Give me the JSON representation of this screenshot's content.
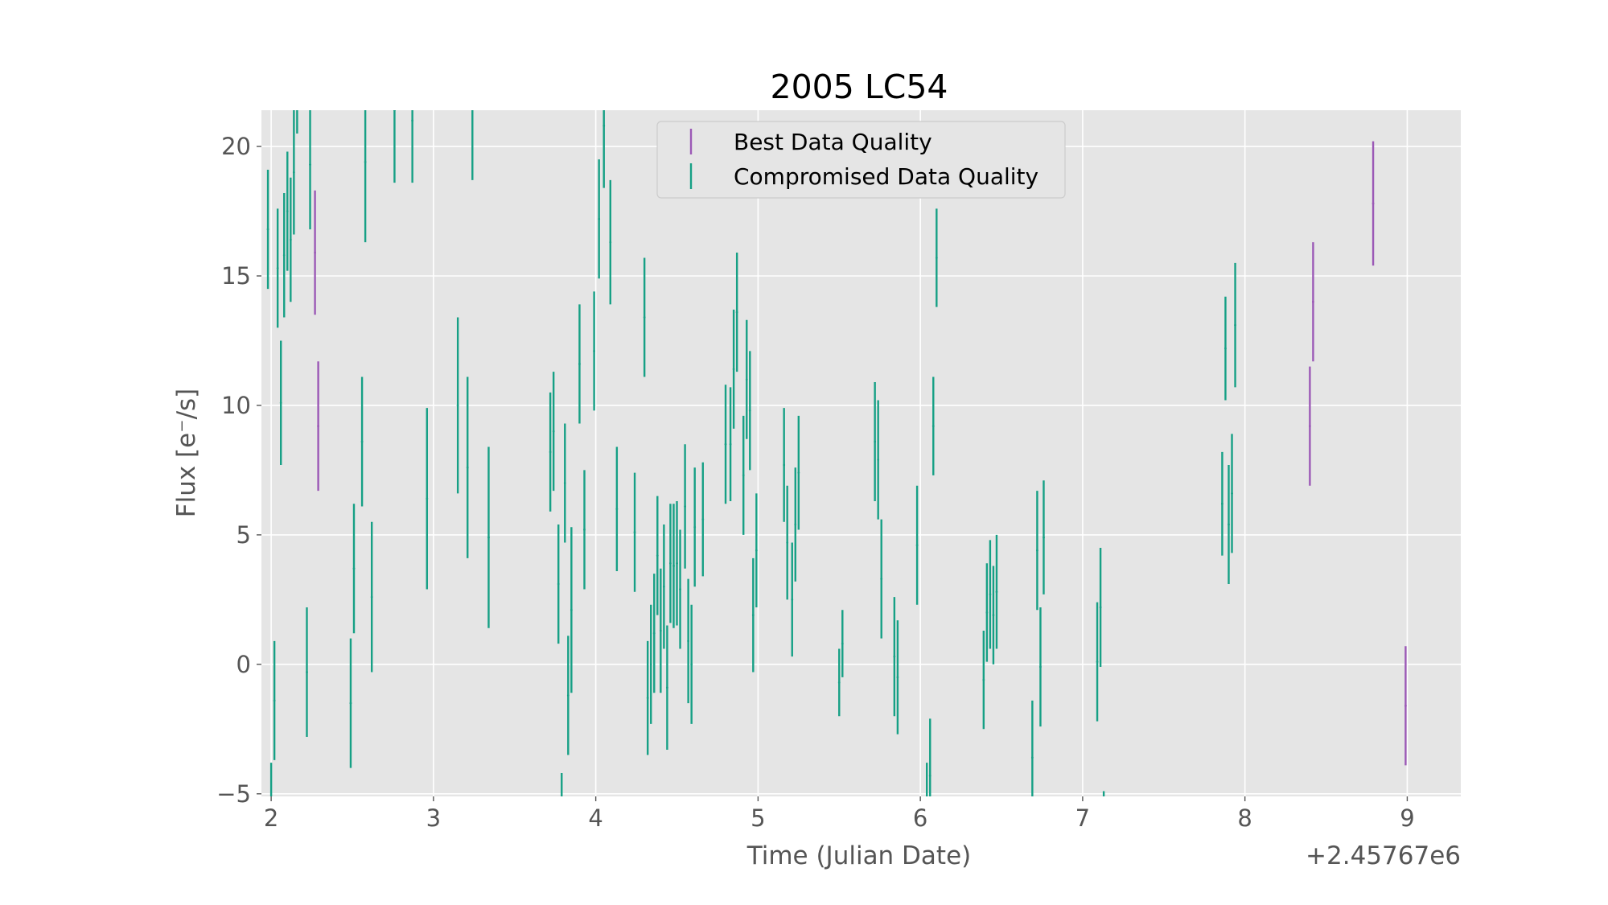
{
  "chart_data": {
    "type": "scatter",
    "title": "2005 LC54",
    "xlabel": "Time (Julian Date)",
    "ylabel": "Flux [e$^-$/s]",
    "ylabel_display": "Flux [e⁻/s]",
    "x_offset_label": "+2.45767e6",
    "x_offset": 2457670,
    "xlim": [
      2457671.94,
      2457679.33
    ],
    "ylim": [
      -5.1,
      21.4
    ],
    "x_tick_values": [
      2457672,
      2457673,
      2457674,
      2457675,
      2457676,
      2457677,
      2457678,
      2457679
    ],
    "x_tick_labels": [
      "2",
      "3",
      "4",
      "5",
      "6",
      "7",
      "8",
      "9"
    ],
    "y_tick_values": [
      -5,
      0,
      5,
      10,
      15,
      20
    ],
    "y_tick_labels": [
      "−5",
      "0",
      "5",
      "10",
      "15",
      "20"
    ],
    "grid": true,
    "legend_position": "top-center",
    "colors": {
      "plot_background": "#e5e5e5",
      "grid": "#ffffff",
      "best": "#9b59b6",
      "compromised": "#16a085"
    },
    "series": [
      {
        "name": "Best Data Quality",
        "color": "#9b59b6",
        "points": [
          {
            "x": 2457672.27,
            "y": 15.9,
            "err": 2.4
          },
          {
            "x": 2457672.29,
            "y": 9.2,
            "err": 2.5
          },
          {
            "x": 2457678.4,
            "y": 9.2,
            "err": 2.3
          },
          {
            "x": 2457678.42,
            "y": 14.0,
            "err": 2.3
          },
          {
            "x": 2457678.79,
            "y": 17.8,
            "err": 2.4
          },
          {
            "x": 2457678.99,
            "y": -1.6,
            "err": 2.3
          }
        ]
      },
      {
        "name": "Compromised Data Quality",
        "color": "#16a085",
        "points": [
          {
            "x": 2457671.98,
            "y": 16.8,
            "err": 2.3
          },
          {
            "x": 2457672.0,
            "y": -6.1,
            "err": 2.3
          },
          {
            "x": 2457672.02,
            "y": -1.4,
            "err": 2.3
          },
          {
            "x": 2457672.04,
            "y": 15.3,
            "err": 2.3
          },
          {
            "x": 2457672.06,
            "y": 10.1,
            "err": 2.4
          },
          {
            "x": 2457672.08,
            "y": 15.8,
            "err": 2.4
          },
          {
            "x": 2457672.1,
            "y": 17.5,
            "err": 2.3
          },
          {
            "x": 2457672.12,
            "y": 16.4,
            "err": 2.4
          },
          {
            "x": 2457672.14,
            "y": 19.0,
            "err": 2.4
          },
          {
            "x": 2457672.16,
            "y": 22.5,
            "err": 2.0
          },
          {
            "x": 2457672.22,
            "y": -0.3,
            "err": 2.5
          },
          {
            "x": 2457672.24,
            "y": 19.3,
            "err": 2.5
          },
          {
            "x": 2457672.49,
            "y": -1.5,
            "err": 2.5
          },
          {
            "x": 2457672.51,
            "y": 3.7,
            "err": 2.5
          },
          {
            "x": 2457672.56,
            "y": 8.6,
            "err": 2.5
          },
          {
            "x": 2457672.58,
            "y": 19.4,
            "err": 3.1
          },
          {
            "x": 2457672.62,
            "y": 2.6,
            "err": 2.9
          },
          {
            "x": 2457672.76,
            "y": 21.4,
            "err": 2.8
          },
          {
            "x": 2457672.87,
            "y": 21.0,
            "err": 2.4
          },
          {
            "x": 2457672.96,
            "y": 6.4,
            "err": 3.5
          },
          {
            "x": 2457673.15,
            "y": 10.0,
            "err": 3.4
          },
          {
            "x": 2457673.21,
            "y": 7.6,
            "err": 3.5
          },
          {
            "x": 2457673.24,
            "y": 21.5,
            "err": 2.8
          },
          {
            "x": 2457673.34,
            "y": 4.9,
            "err": 3.5
          },
          {
            "x": 2457673.72,
            "y": 8.2,
            "err": 2.3
          },
          {
            "x": 2457673.74,
            "y": 9.0,
            "err": 2.3
          },
          {
            "x": 2457673.77,
            "y": 3.1,
            "err": 2.3
          },
          {
            "x": 2457673.79,
            "y": -6.5,
            "err": 2.3
          },
          {
            "x": 2457673.81,
            "y": 7.0,
            "err": 2.3
          },
          {
            "x": 2457673.83,
            "y": -1.2,
            "err": 2.3
          },
          {
            "x": 2457673.85,
            "y": 2.1,
            "err": 3.2
          },
          {
            "x": 2457673.9,
            "y": 11.6,
            "err": 2.3
          },
          {
            "x": 2457673.93,
            "y": 5.2,
            "err": 2.3
          },
          {
            "x": 2457673.99,
            "y": 12.1,
            "err": 2.3
          },
          {
            "x": 2457674.02,
            "y": 17.2,
            "err": 2.3
          },
          {
            "x": 2457674.05,
            "y": 20.8,
            "err": 2.4
          },
          {
            "x": 2457674.09,
            "y": 16.3,
            "err": 2.4
          },
          {
            "x": 2457674.13,
            "y": 6.0,
            "err": 2.4
          },
          {
            "x": 2457674.24,
            "y": 5.1,
            "err": 2.3
          },
          {
            "x": 2457674.3,
            "y": 13.4,
            "err": 2.3
          },
          {
            "x": 2457674.32,
            "y": -1.3,
            "err": 2.2
          },
          {
            "x": 2457674.34,
            "y": 0.0,
            "err": 2.3
          },
          {
            "x": 2457674.36,
            "y": 1.2,
            "err": 2.3
          },
          {
            "x": 2457674.38,
            "y": 4.2,
            "err": 2.3
          },
          {
            "x": 2457674.4,
            "y": 1.3,
            "err": 2.4
          },
          {
            "x": 2457674.42,
            "y": 3.0,
            "err": 2.4
          },
          {
            "x": 2457674.44,
            "y": -0.9,
            "err": 2.4
          },
          {
            "x": 2457674.46,
            "y": 3.9,
            "err": 2.3
          },
          {
            "x": 2457674.48,
            "y": 3.8,
            "err": 2.4
          },
          {
            "x": 2457674.5,
            "y": 3.9,
            "err": 2.4
          },
          {
            "x": 2457674.52,
            "y": 2.9,
            "err": 2.3
          },
          {
            "x": 2457674.55,
            "y": 6.1,
            "err": 2.4
          },
          {
            "x": 2457674.57,
            "y": 0.9,
            "err": 2.4
          },
          {
            "x": 2457674.59,
            "y": 0.0,
            "err": 2.3
          },
          {
            "x": 2457674.61,
            "y": 5.3,
            "err": 2.3
          },
          {
            "x": 2457674.66,
            "y": 5.6,
            "err": 2.2
          },
          {
            "x": 2457674.8,
            "y": 8.5,
            "err": 2.3
          },
          {
            "x": 2457674.83,
            "y": 8.5,
            "err": 2.2
          },
          {
            "x": 2457674.85,
            "y": 11.4,
            "err": 2.3
          },
          {
            "x": 2457674.87,
            "y": 13.6,
            "err": 2.3
          },
          {
            "x": 2457674.91,
            "y": 7.3,
            "err": 2.3
          },
          {
            "x": 2457674.93,
            "y": 11.0,
            "err": 2.3
          },
          {
            "x": 2457674.95,
            "y": 9.8,
            "err": 2.3
          },
          {
            "x": 2457674.97,
            "y": 1.9,
            "err": 2.2
          },
          {
            "x": 2457674.99,
            "y": 4.4,
            "err": 2.2
          },
          {
            "x": 2457675.16,
            "y": 7.7,
            "err": 2.2
          },
          {
            "x": 2457675.18,
            "y": 4.7,
            "err": 2.2
          },
          {
            "x": 2457675.21,
            "y": 2.5,
            "err": 2.2
          },
          {
            "x": 2457675.23,
            "y": 5.4,
            "err": 2.2
          },
          {
            "x": 2457675.25,
            "y": 7.4,
            "err": 2.2
          },
          {
            "x": 2457675.5,
            "y": -0.7,
            "err": 1.3
          },
          {
            "x": 2457675.52,
            "y": 0.8,
            "err": 1.3
          },
          {
            "x": 2457675.72,
            "y": 8.6,
            "err": 2.3
          },
          {
            "x": 2457675.74,
            "y": 7.9,
            "err": 2.3
          },
          {
            "x": 2457675.76,
            "y": 3.3,
            "err": 2.3
          },
          {
            "x": 2457675.84,
            "y": 0.3,
            "err": 2.3
          },
          {
            "x": 2457675.86,
            "y": -0.5,
            "err": 2.2
          },
          {
            "x": 2457675.98,
            "y": 4.6,
            "err": 2.3
          },
          {
            "x": 2457676.04,
            "y": -6.1,
            "err": 2.3
          },
          {
            "x": 2457676.06,
            "y": -4.3,
            "err": 2.2
          },
          {
            "x": 2457676.08,
            "y": 9.2,
            "err": 1.9
          },
          {
            "x": 2457676.1,
            "y": 15.7,
            "err": 1.9
          },
          {
            "x": 2457676.39,
            "y": -0.6,
            "err": 1.9
          },
          {
            "x": 2457676.41,
            "y": 2.0,
            "err": 1.9
          },
          {
            "x": 2457676.43,
            "y": 2.7,
            "err": 2.1
          },
          {
            "x": 2457676.45,
            "y": 1.9,
            "err": 1.9
          },
          {
            "x": 2457676.47,
            "y": 2.8,
            "err": 2.2
          },
          {
            "x": 2457676.69,
            "y": -3.6,
            "err": 2.2
          },
          {
            "x": 2457676.72,
            "y": 4.4,
            "err": 2.3
          },
          {
            "x": 2457676.74,
            "y": -0.1,
            "err": 2.3
          },
          {
            "x": 2457676.76,
            "y": 4.9,
            "err": 2.2
          },
          {
            "x": 2457677.09,
            "y": 0.1,
            "err": 2.3
          },
          {
            "x": 2457677.11,
            "y": 2.2,
            "err": 2.3
          },
          {
            "x": 2457677.13,
            "y": -7.2,
            "err": 2.3
          },
          {
            "x": 2457677.86,
            "y": 6.2,
            "err": 2.0
          },
          {
            "x": 2457677.88,
            "y": 12.2,
            "err": 2.0
          },
          {
            "x": 2457677.9,
            "y": 5.4,
            "err": 2.3
          },
          {
            "x": 2457677.92,
            "y": 6.6,
            "err": 2.3
          },
          {
            "x": 2457677.94,
            "y": 13.1,
            "err": 2.4
          }
        ]
      }
    ]
  }
}
